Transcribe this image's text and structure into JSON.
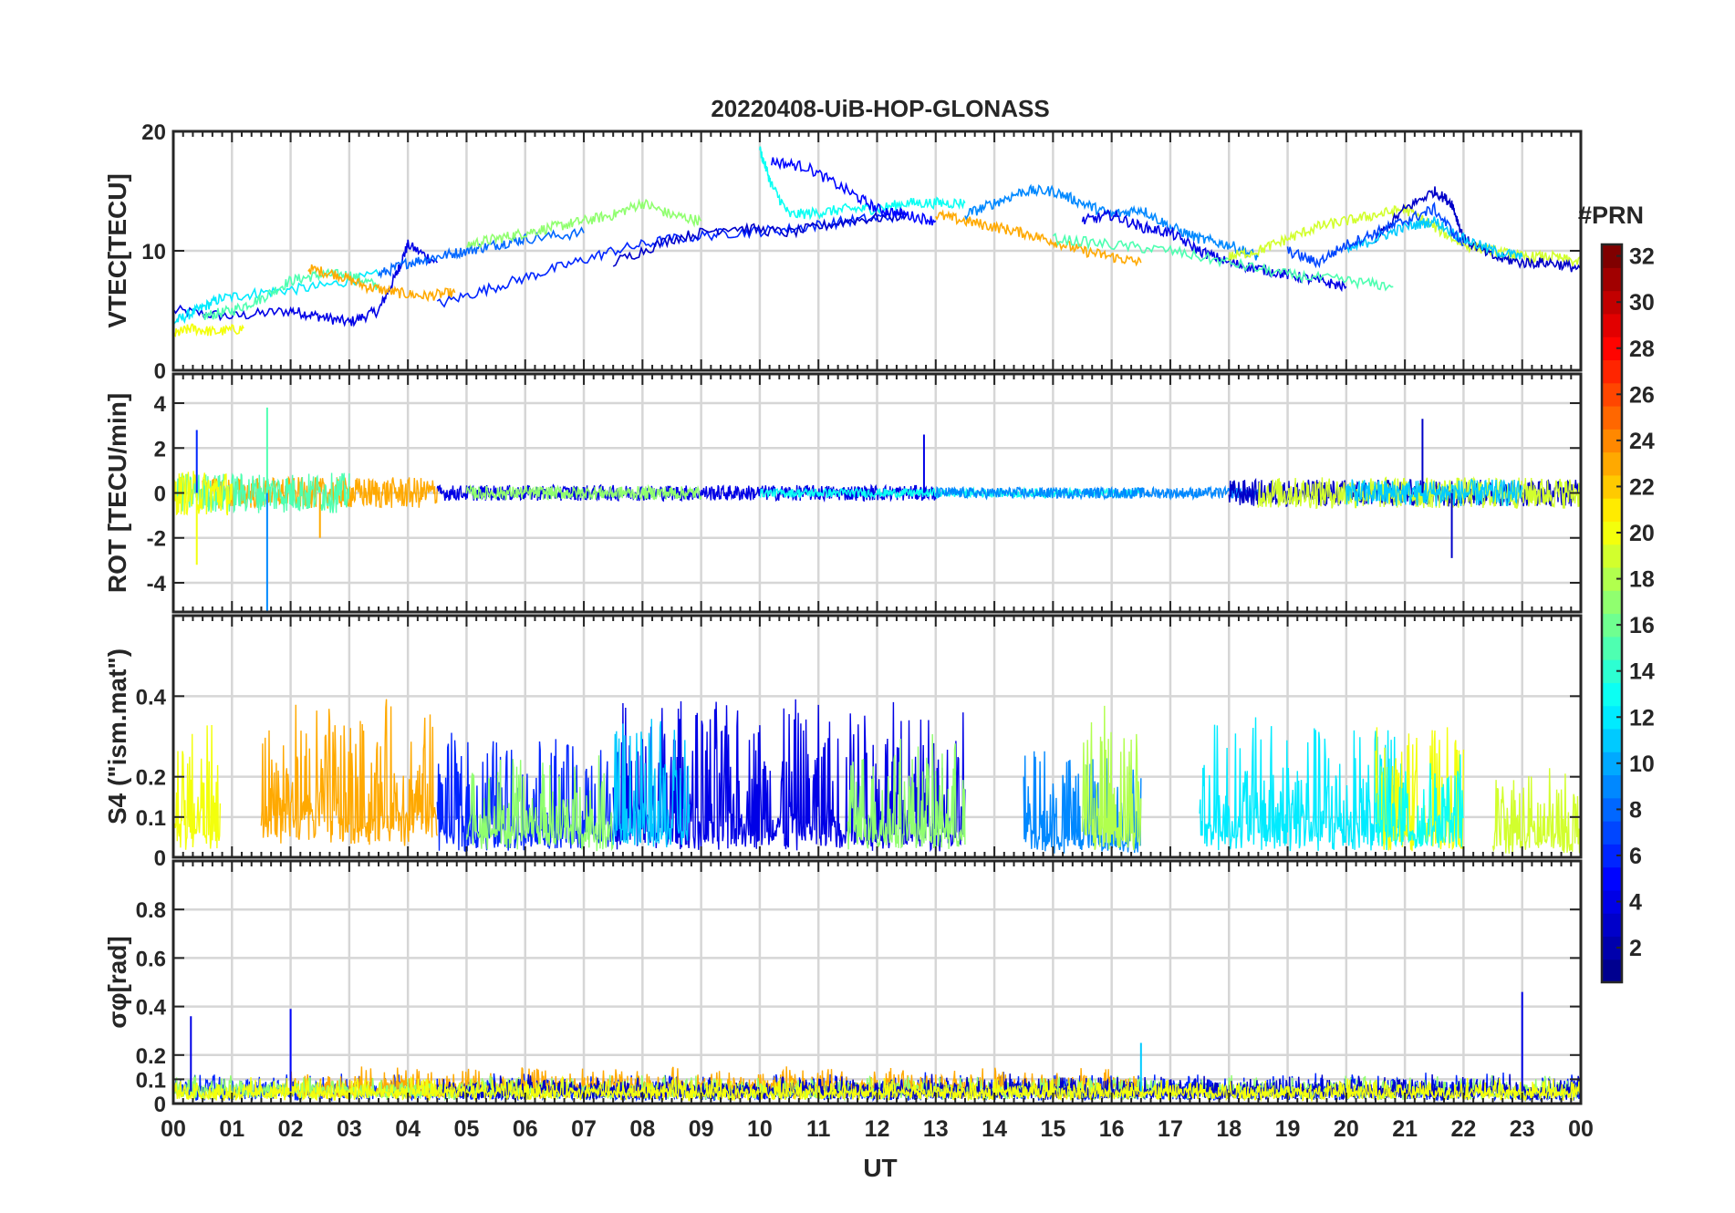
{
  "figure_title": "20220408-UiB-HOP-GLONASS",
  "colors": {
    "axis": "#262626",
    "grid": "#d6d6d6",
    "background": "#ffffff",
    "colormap": [
      "#00008f",
      "#0000ff",
      "#0080ff",
      "#00ffff",
      "#80ff80",
      "#ffff00",
      "#ff8000",
      "#ff0000",
      "#800000"
    ]
  },
  "chart_data": [
    {
      "id": "vtec",
      "type": "line",
      "ylabel": "VTEC[TECU]",
      "ylim": [
        0,
        20
      ],
      "yticks": [
        0,
        10,
        20
      ],
      "ytick_labels": [
        "0",
        "10",
        "20"
      ],
      "xlim": [
        0,
        24
      ],
      "grid": true,
      "series": [
        {
          "prn": 4,
          "x": [
            0.0,
            1.0,
            2.0,
            2.5,
            3.0,
            3.5,
            3.8,
            4.0,
            4.5
          ],
          "y": [
            5.0,
            4.5,
            5.0,
            4.5,
            4.0,
            5.0,
            8.0,
            10.5,
            9.0
          ]
        },
        {
          "prn": 12,
          "x": [
            0.0,
            0.4,
            0.8,
            1.5,
            2.5,
            3.5
          ],
          "y": [
            4.0,
            5.0,
            6.0,
            6.5,
            7.0,
            8.0
          ]
        },
        {
          "prn": 15,
          "x": [
            0.5,
            1.0,
            1.5,
            2.0,
            2.5,
            3.0,
            3.5
          ],
          "y": [
            4.5,
            5.0,
            6.0,
            7.5,
            8.0,
            8.0,
            7.0
          ]
        },
        {
          "prn": 23,
          "x": [
            2.3,
            2.8,
            3.3,
            3.8,
            4.3,
            4.8
          ],
          "y": [
            8.5,
            8.0,
            7.0,
            6.5,
            6.2,
            6.5
          ]
        },
        {
          "prn": 20,
          "x": [
            0.0,
            0.3,
            0.7,
            1.2
          ],
          "y": [
            3.0,
            3.5,
            3.2,
            3.5
          ]
        },
        {
          "prn": 8,
          "x": [
            3.5,
            4.0,
            4.5,
            5.0,
            5.5,
            6.0,
            7.0
          ],
          "y": [
            8.0,
            9.0,
            9.5,
            10.0,
            10.5,
            11.0,
            11.5
          ]
        },
        {
          "prn": 17,
          "x": [
            5.0,
            5.5,
            6.0,
            6.5,
            7.0,
            7.5,
            8.0,
            8.5,
            9.0
          ],
          "y": [
            10.5,
            11.0,
            11.5,
            12.0,
            12.5,
            13.0,
            14.0,
            13.0,
            12.5
          ]
        },
        {
          "prn": 6,
          "x": [
            4.5,
            5.5,
            6.5,
            7.5,
            8.5,
            9.5,
            10.5,
            11.5,
            12.5
          ],
          "y": [
            5.5,
            7.0,
            8.5,
            10.0,
            11.0,
            11.5,
            11.8,
            12.5,
            13.0
          ]
        },
        {
          "prn": 3,
          "x": [
            7.5,
            8.5,
            9.5,
            10.5,
            11.5,
            12.5
          ],
          "y": [
            9.0,
            11.0,
            12.0,
            11.5,
            12.5,
            13.0
          ]
        },
        {
          "prn": 13,
          "x": [
            10.0,
            10.2,
            10.5,
            11.0,
            11.5,
            12.0,
            12.5,
            13.0,
            13.5
          ],
          "y": [
            18.5,
            15.5,
            13.0,
            13.2,
            13.5,
            13.5,
            14.0,
            14.0,
            14.0
          ]
        },
        {
          "prn": 5,
          "x": [
            10.2,
            10.8,
            11.5,
            12.0,
            12.5,
            13.0
          ],
          "y": [
            17.5,
            17.0,
            15.0,
            13.5,
            13.0,
            12.5
          ]
        },
        {
          "prn": 23,
          "x": [
            13.0,
            13.5,
            14.0,
            14.5,
            15.0,
            15.5,
            16.0,
            16.5
          ],
          "y": [
            13.0,
            12.5,
            12.0,
            11.5,
            10.8,
            10.0,
            9.5,
            9.0
          ]
        },
        {
          "prn": 9,
          "x": [
            13.5,
            14.0,
            14.5,
            15.0,
            15.5,
            16.0,
            16.5,
            17.0,
            17.5,
            18.0,
            18.5
          ],
          "y": [
            13.0,
            14.0,
            15.0,
            15.0,
            14.0,
            13.0,
            13.5,
            12.0,
            11.0,
            10.5,
            9.5
          ]
        },
        {
          "prn": 4,
          "x": [
            15.5,
            16.0,
            16.5,
            17.0,
            17.5,
            18.0,
            18.5,
            19.0,
            19.5,
            20.0
          ],
          "y": [
            12.5,
            13.0,
            12.0,
            11.5,
            10.0,
            9.0,
            8.5,
            8.0,
            7.5,
            7.0
          ]
        },
        {
          "prn": 15,
          "x": [
            15.0,
            16.0,
            17.0,
            18.0,
            19.0,
            20.0,
            20.8
          ],
          "y": [
            11.0,
            10.5,
            10.0,
            9.0,
            8.0,
            7.5,
            7.0
          ]
        },
        {
          "prn": 19,
          "x": [
            18.0,
            18.5,
            19.0,
            19.5,
            20.0,
            20.5,
            21.0,
            21.5,
            22.0,
            22.5,
            23.0,
            23.5,
            24.0
          ],
          "y": [
            9.5,
            10.0,
            11.0,
            12.0,
            12.5,
            13.0,
            13.5,
            12.0,
            10.5,
            10.0,
            9.5,
            9.5,
            9.0
          ]
        },
        {
          "prn": 3,
          "x": [
            20.5,
            21.0,
            21.5,
            21.8,
            22.0,
            22.5,
            23.0,
            23.5,
            24.0
          ],
          "y": [
            11.0,
            13.5,
            15.0,
            14.0,
            11.0,
            9.5,
            9.0,
            9.0,
            8.5
          ]
        },
        {
          "prn": 11,
          "x": [
            20.0,
            20.5,
            21.0,
            21.5,
            22.0,
            22.5,
            23.0
          ],
          "y": [
            10.0,
            11.0,
            12.0,
            12.5,
            11.0,
            10.0,
            9.5
          ]
        },
        {
          "prn": 7,
          "x": [
            19.0,
            19.5,
            20.0,
            20.5,
            21.0,
            21.5,
            22.0
          ],
          "y": [
            10.0,
            9.0,
            10.5,
            11.5,
            12.5,
            13.5,
            10.5
          ]
        }
      ]
    },
    {
      "id": "rot",
      "type": "line",
      "ylabel": "ROT [TECU/min]",
      "ylim": [
        -5.3,
        5.3
      ],
      "yticks": [
        -4,
        -2,
        0,
        2,
        4
      ],
      "ytick_labels": [
        "-4",
        "-2",
        "0",
        "2",
        "4"
      ],
      "xlim": [
        0,
        24
      ],
      "grid": true,
      "noise_segments": [
        {
          "prn": 23,
          "x_range": [
            0.5,
            4.5
          ],
          "amplitude": 0.7
        },
        {
          "prn": 15,
          "x_range": [
            0.0,
            3.0
          ],
          "amplitude": 0.9
        },
        {
          "prn": 20,
          "x_range": [
            0.0,
            1.0
          ],
          "amplitude": 1.0
        },
        {
          "prn": 4,
          "x_range": [
            4.5,
            13.0
          ],
          "amplitude": 0.35
        },
        {
          "prn": 17,
          "x_range": [
            5.0,
            9.0
          ],
          "amplitude": 0.3
        },
        {
          "prn": 13,
          "x_range": [
            10.0,
            16.5
          ],
          "amplitude": 0.2
        },
        {
          "prn": 9,
          "x_range": [
            13.0,
            18.5
          ],
          "amplitude": 0.25
        },
        {
          "prn": 3,
          "x_range": [
            18.0,
            24.0
          ],
          "amplitude": 0.6
        },
        {
          "prn": 19,
          "x_range": [
            18.5,
            24.0
          ],
          "amplitude": 0.7
        },
        {
          "prn": 11,
          "x_range": [
            20.0,
            23.0
          ],
          "amplitude": 0.6
        }
      ],
      "spikes": [
        {
          "prn": 9,
          "x": 1.6,
          "y": -5.3
        },
        {
          "prn": 15,
          "x": 1.6,
          "y": 3.8
        },
        {
          "prn": 20,
          "x": 0.4,
          "y": -3.2
        },
        {
          "prn": 4,
          "x": 12.8,
          "y": 2.6
        },
        {
          "prn": 3,
          "x": 21.3,
          "y": 3.3
        },
        {
          "prn": 3,
          "x": 21.8,
          "y": -2.9
        },
        {
          "prn": 23,
          "x": 2.5,
          "y": -2.0
        },
        {
          "prn": 6,
          "x": 0.4,
          "y": 2.8
        }
      ]
    },
    {
      "id": "s4",
      "type": "line",
      "ylabel": "S4 (\"ism.mat\")",
      "ylim": [
        0,
        0.6
      ],
      "yticks": [
        0,
        0.1,
        0.2,
        0.4
      ],
      "ytick_labels": [
        "0",
        "0.1",
        "0.2",
        "0.4"
      ],
      "xlim": [
        0,
        24
      ],
      "grid": true,
      "noise_segments": [
        {
          "prn": 23,
          "x_range": [
            1.5,
            4.5
          ],
          "amplitude": 0.3,
          "base": 0.08
        },
        {
          "prn": 20,
          "x_range": [
            0.0,
            0.8
          ],
          "amplitude": 0.3,
          "base": 0.05
        },
        {
          "prn": 6,
          "x_range": [
            4.5,
            7.5
          ],
          "amplitude": 0.25,
          "base": 0.05
        },
        {
          "prn": 17,
          "x_range": [
            5.0,
            7.5
          ],
          "amplitude": 0.2,
          "base": 0.05
        },
        {
          "prn": 4,
          "x_range": [
            7.5,
            13.5
          ],
          "amplitude": 0.35,
          "base": 0.05
        },
        {
          "prn": 11,
          "x_range": [
            7.5,
            8.8
          ],
          "amplitude": 0.3,
          "base": 0.05
        },
        {
          "prn": 17,
          "x_range": [
            11.5,
            13.5
          ],
          "amplitude": 0.25,
          "base": 0.05
        },
        {
          "prn": 9,
          "x_range": [
            14.5,
            16.5
          ],
          "amplitude": 0.25,
          "base": 0.03
        },
        {
          "prn": 18,
          "x_range": [
            15.5,
            16.5
          ],
          "amplitude": 0.35,
          "base": 0.05
        },
        {
          "prn": 12,
          "x_range": [
            17.5,
            21.0
          ],
          "amplitude": 0.3,
          "base": 0.05
        },
        {
          "prn": 20,
          "x_range": [
            20.5,
            22.0
          ],
          "amplitude": 0.28,
          "base": 0.05
        },
        {
          "prn": 13,
          "x_range": [
            20.5,
            22.0
          ],
          "amplitude": 0.2,
          "base": 0.05
        },
        {
          "prn": 19,
          "x_range": [
            22.5,
            24.0
          ],
          "amplitude": 0.2,
          "base": 0.03
        }
      ]
    },
    {
      "id": "sigma_phi",
      "type": "line",
      "ylabel": "σφ[rad]",
      "ylim": [
        0,
        1.0
      ],
      "yticks": [
        0,
        0.1,
        0.2,
        0.4,
        0.6,
        0.8
      ],
      "ytick_labels": [
        "0",
        "0.1",
        "0.2",
        "0.4",
        "0.6",
        "0.8"
      ],
      "xlim": [
        0,
        24
      ],
      "grid": true,
      "noise_segments": [
        {
          "prn": 6,
          "x_range": [
            0.0,
            24.0
          ],
          "amplitude": 0.08,
          "base": 0.04
        },
        {
          "prn": 23,
          "x_range": [
            2.0,
            16.5
          ],
          "amplitude": 0.08,
          "base": 0.06
        },
        {
          "prn": 17,
          "x_range": [
            0.0,
            24.0
          ],
          "amplitude": 0.06,
          "base": 0.05
        },
        {
          "prn": 3,
          "x_range": [
            4.5,
            24.0
          ],
          "amplitude": 0.06,
          "base": 0.05
        },
        {
          "prn": 20,
          "x_range": [
            0.0,
            24.0
          ],
          "amplitude": 0.06,
          "base": 0.04
        }
      ],
      "spikes": [
        {
          "prn": 4,
          "x": 0.3,
          "y": 0.36
        },
        {
          "prn": 5,
          "x": 2.0,
          "y": 0.39
        },
        {
          "prn": 4,
          "x": 23.0,
          "y": 0.46
        },
        {
          "prn": 11,
          "x": 16.5,
          "y": 0.25
        }
      ]
    }
  ],
  "x_axis": {
    "label": "UT",
    "tick_labels": [
      "00",
      "01",
      "02",
      "03",
      "04",
      "05",
      "06",
      "07",
      "08",
      "09",
      "10",
      "11",
      "12",
      "13",
      "14",
      "15",
      "16",
      "17",
      "18",
      "19",
      "20",
      "21",
      "22",
      "23",
      "00"
    ]
  },
  "colorbar": {
    "title": "#PRN",
    "range": [
      1,
      32
    ],
    "tick_labels": [
      "2",
      "4",
      "6",
      "8",
      "10",
      "12",
      "14",
      "16",
      "18",
      "20",
      "22",
      "24",
      "26",
      "28",
      "30",
      "32"
    ]
  }
}
